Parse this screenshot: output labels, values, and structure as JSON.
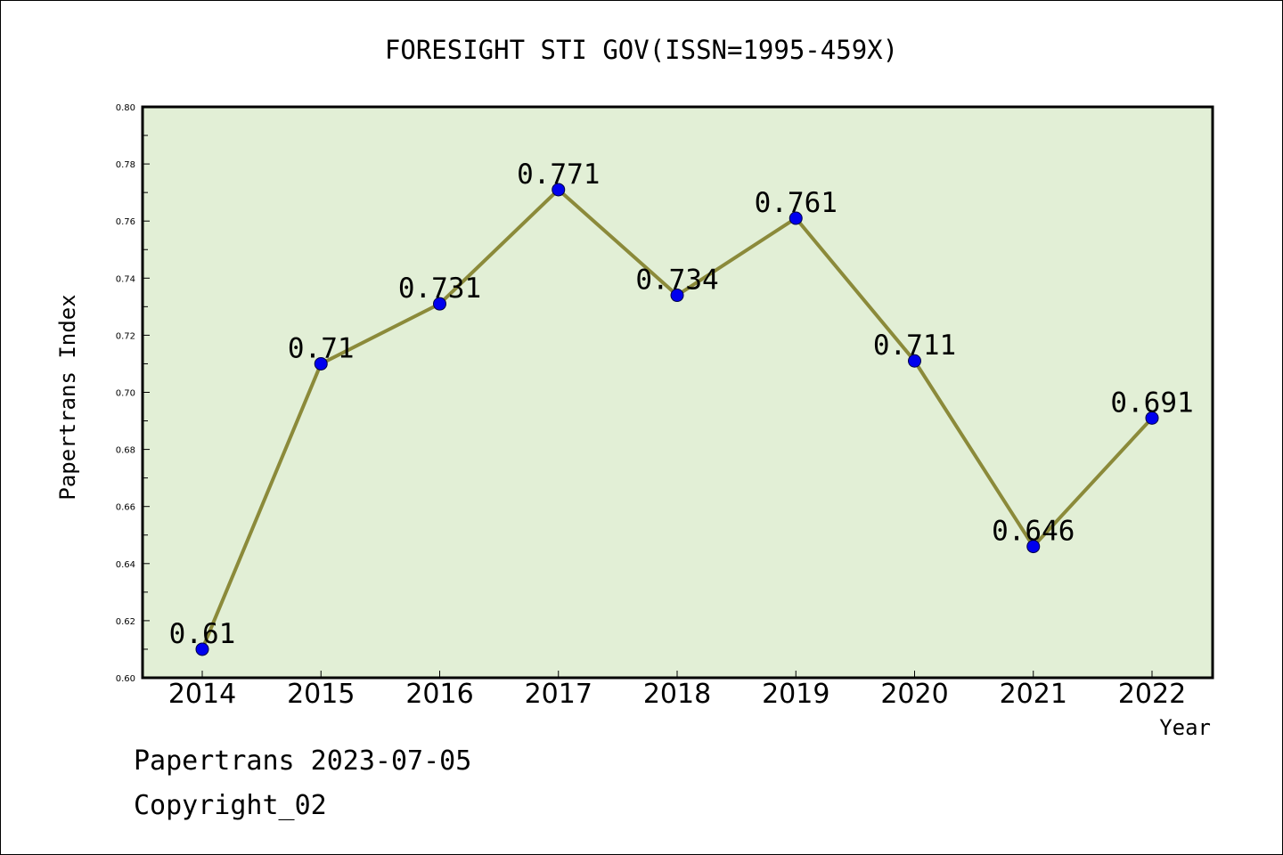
{
  "chart_data": {
    "type": "line",
    "title": "FORESIGHT STI GOV(ISSN=1995-459X)",
    "xlabel": "Year",
    "ylabel": "Papertrans Index",
    "categories": [
      "2014",
      "2015",
      "2016",
      "2017",
      "2018",
      "2019",
      "2020",
      "2021",
      "2022"
    ],
    "values": [
      0.61,
      0.71,
      0.731,
      0.771,
      0.734,
      0.761,
      0.711,
      0.646,
      0.691
    ],
    "data_labels": [
      "0.61",
      "0.71",
      "0.731",
      "0.771",
      "0.734",
      "0.761",
      "0.711",
      "0.646",
      "0.691"
    ],
    "ylim": [
      0.6,
      0.8
    ],
    "yticks": [
      "0.60",
      "0.62",
      "0.64",
      "0.66",
      "0.68",
      "0.70",
      "0.72",
      "0.74",
      "0.76",
      "0.78",
      "0.80"
    ],
    "grid": false,
    "legend": "none",
    "colors": {
      "plot_background": "#e2efd6",
      "line": "#8b8a3a",
      "marker": "#0000ee",
      "axis": "#000000"
    }
  },
  "footer": {
    "line1": "Papertrans 2023-07-05",
    "line2": "Copyright_02"
  }
}
